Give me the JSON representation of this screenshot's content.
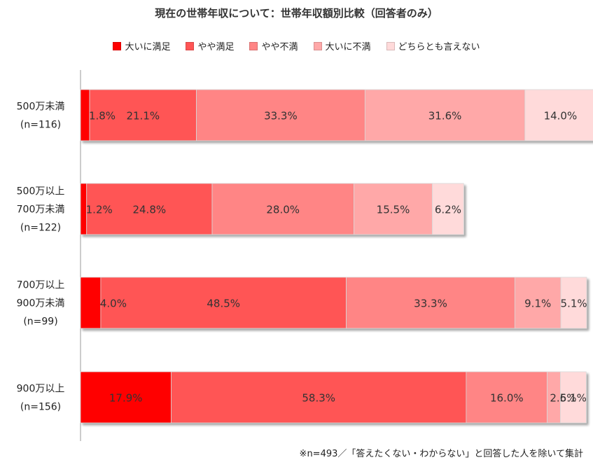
{
  "chart_data": {
    "type": "bar",
    "orientation": "horizontal",
    "stacked": true,
    "title": "現在の世帯年収について：世帯年収額別比較（回答者のみ）",
    "categories": [
      [
        "500万未満",
        "(n=116)"
      ],
      [
        "500万以上",
        "700万未満",
        "(n=122)"
      ],
      [
        "700万以上",
        "900万未満",
        "(n=99)"
      ],
      [
        "900万以上",
        "(n=156)"
      ]
    ],
    "series": [
      {
        "name": "大いに満足",
        "color": "#ff0000",
        "values": [
          1.8,
          1.2,
          4.0,
          17.9
        ],
        "labels": [
          "1.8%",
          "1.2%",
          "4.0%",
          "17.9%"
        ]
      },
      {
        "name": "やや満足",
        "color": "#ff5555",
        "values": [
          21.1,
          24.8,
          48.5,
          58.3
        ],
        "labels": [
          "21.1%",
          "24.8%",
          "48.5%",
          "58.3%"
        ]
      },
      {
        "name": "やや不満",
        "color": "#ff8585",
        "values": [
          33.3,
          28.0,
          33.3,
          16.0
        ],
        "labels": [
          "33.3%",
          "28.0%",
          "33.3%",
          "16.0%"
        ]
      },
      {
        "name": "大いに不満",
        "color": "#ffa8a8",
        "values": [
          31.6,
          15.5,
          9.1,
          2.6
        ],
        "labels": [
          "31.6%",
          "15.5%",
          "9.1%",
          "2.6%"
        ]
      },
      {
        "name": "どちらとも言えない",
        "color": "#ffdada",
        "values": [
          14.0,
          6.2,
          5.1,
          5.1
        ],
        "labels": [
          "14.0%",
          "6.2%",
          "5.1%",
          "5.1%"
        ]
      }
    ],
    "legend": "top",
    "grid": false,
    "xlim": [
      0,
      100
    ],
    "footnote": "※n=493／「答えたくない・わからない」と回答した人を除いて集計"
  }
}
